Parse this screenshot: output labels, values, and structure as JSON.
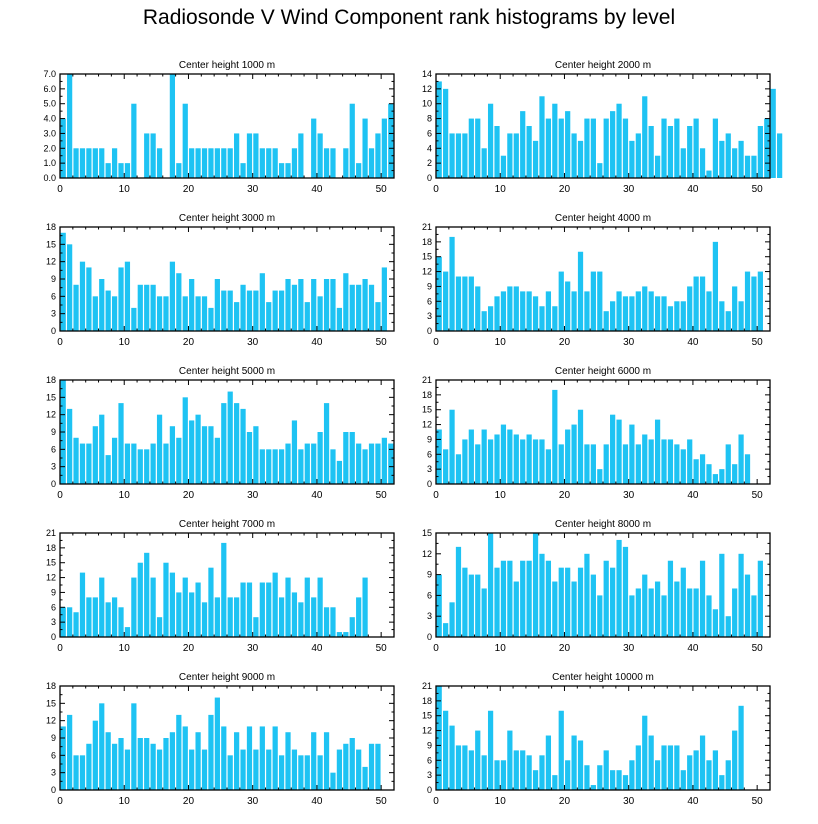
{
  "title": "Radiosonde V Wind Component rank histograms by level",
  "colors": {
    "bar": "#1ec3f3",
    "bar_edge": "#ffffff",
    "axis": "#000000",
    "background": "#ffffff"
  },
  "chart_data": [
    {
      "type": "bar",
      "title": "Center height 1000 m",
      "xlim": [
        0,
        52
      ],
      "xticks": [
        0,
        10,
        20,
        30,
        40,
        50
      ],
      "ylim": [
        0,
        7
      ],
      "yticks": [
        0,
        1,
        2,
        3,
        4,
        5,
        6,
        7
      ],
      "ytick_labels": [
        "0.0",
        "1.0",
        "2.0",
        "3.0",
        "4.0",
        "5.0",
        "6.0",
        "7.0"
      ],
      "values": [
        4,
        7,
        2,
        2,
        2,
        2,
        2,
        1,
        2,
        1,
        1,
        5,
        0,
        3,
        3,
        2,
        0,
        7,
        1,
        5,
        2,
        2,
        2,
        2,
        2,
        2,
        2,
        3,
        1,
        3,
        3,
        2,
        2,
        2,
        1,
        1,
        2,
        3,
        0,
        4,
        3,
        2,
        2,
        0,
        2,
        5,
        1,
        4,
        2,
        3,
        4,
        5
      ]
    },
    {
      "type": "bar",
      "title": "Center height 2000 m",
      "xlim": [
        0,
        52
      ],
      "xticks": [
        0,
        10,
        20,
        30,
        40,
        50
      ],
      "ylim": [
        0,
        14
      ],
      "yticks": [
        0,
        2,
        4,
        6,
        8,
        10,
        12,
        14
      ],
      "ytick_labels": [
        "0",
        "2",
        "4",
        "6",
        "8",
        "10",
        "12",
        "14"
      ],
      "values": [
        13,
        12,
        6,
        6,
        6,
        8,
        8,
        4,
        10,
        7,
        3,
        6,
        6,
        9,
        7,
        5,
        11,
        8,
        10,
        8,
        9,
        6,
        5,
        8,
        8,
        2,
        8,
        9,
        10,
        8,
        5,
        6,
        11,
        7,
        3,
        8,
        7,
        8,
        4,
        7,
        8,
        4,
        1,
        8,
        5,
        6,
        4,
        5,
        3,
        3,
        7,
        8,
        12,
        6
      ]
    },
    {
      "type": "bar",
      "title": "Center height 3000 m",
      "xlim": [
        0,
        52
      ],
      "xticks": [
        0,
        10,
        20,
        30,
        40,
        50
      ],
      "ylim": [
        0,
        18
      ],
      "yticks": [
        0,
        3,
        6,
        9,
        12,
        15,
        18
      ],
      "ytick_labels": [
        "0",
        "3",
        "6",
        "9",
        "12",
        "15",
        "18"
      ],
      "values": [
        17,
        15,
        8,
        12,
        11,
        6,
        9,
        7,
        6,
        11,
        12,
        4,
        8,
        8,
        8,
        6,
        6,
        12,
        10,
        6,
        9,
        6,
        6,
        4,
        9,
        7,
        7,
        5,
        8,
        7,
        7,
        10,
        5,
        7,
        7,
        9,
        8,
        9,
        5,
        9,
        6,
        9,
        9,
        4,
        10,
        8,
        8,
        9,
        8,
        5,
        11
      ]
    },
    {
      "type": "bar",
      "title": "Center height 4000 m",
      "xlim": [
        0,
        52
      ],
      "xticks": [
        0,
        10,
        20,
        30,
        40,
        50
      ],
      "ylim": [
        0,
        21
      ],
      "yticks": [
        0,
        3,
        6,
        9,
        12,
        15,
        18,
        21
      ],
      "ytick_labels": [
        "0",
        "3",
        "6",
        "9",
        "12",
        "15",
        "18",
        "21"
      ],
      "values": [
        15,
        12,
        19,
        11,
        11,
        11,
        9,
        4,
        5,
        7,
        8,
        9,
        9,
        8,
        8,
        7,
        5,
        8,
        5,
        12,
        10,
        8,
        16,
        8,
        12,
        12,
        4,
        6,
        8,
        7,
        7,
        8,
        9,
        8,
        7,
        7,
        5,
        6,
        6,
        9,
        11,
        11,
        8,
        18,
        6,
        4,
        9,
        6,
        12,
        11,
        12
      ]
    },
    {
      "type": "bar",
      "title": "Center height 5000 m",
      "xlim": [
        0,
        52
      ],
      "xticks": [
        0,
        10,
        20,
        30,
        40,
        50
      ],
      "ylim": [
        0,
        18
      ],
      "yticks": [
        0,
        3,
        6,
        9,
        12,
        15,
        18
      ],
      "ytick_labels": [
        "0",
        "3",
        "6",
        "9",
        "12",
        "15",
        "18"
      ],
      "values": [
        18,
        13,
        8,
        7,
        7,
        10,
        12,
        5,
        8,
        14,
        7,
        7,
        6,
        6,
        7,
        12,
        7,
        10,
        8,
        15,
        11,
        12,
        10,
        10,
        8,
        14,
        16,
        14,
        13,
        9,
        10,
        6,
        6,
        6,
        6,
        7,
        11,
        6,
        7,
        7,
        9,
        14,
        6,
        4,
        9,
        9,
        7,
        6,
        7,
        7,
        8,
        7
      ]
    },
    {
      "type": "bar",
      "title": "Center height 6000 m",
      "xlim": [
        0,
        52
      ],
      "xticks": [
        0,
        10,
        20,
        30,
        40,
        50
      ],
      "ylim": [
        0,
        21
      ],
      "yticks": [
        0,
        3,
        6,
        9,
        12,
        15,
        18,
        21
      ],
      "ytick_labels": [
        "0",
        "3",
        "6",
        "9",
        "12",
        "15",
        "18",
        "21"
      ],
      "values": [
        11,
        7,
        15,
        6,
        9,
        11,
        8,
        11,
        9,
        10,
        12,
        11,
        10,
        9,
        10,
        9,
        9,
        7,
        19,
        8,
        11,
        12,
        15,
        8,
        8,
        3,
        8,
        14,
        13,
        8,
        12,
        8,
        10,
        9,
        13,
        9,
        9,
        8,
        7,
        9,
        5,
        6,
        4,
        2,
        3,
        8,
        4,
        10,
        6
      ]
    },
    {
      "type": "bar",
      "title": "Center height 7000 m",
      "xlim": [
        0,
        52
      ],
      "xticks": [
        0,
        10,
        20,
        30,
        40,
        50
      ],
      "ylim": [
        0,
        21
      ],
      "yticks": [
        0,
        3,
        6,
        9,
        12,
        15,
        18,
        21
      ],
      "ytick_labels": [
        "0",
        "3",
        "6",
        "9",
        "12",
        "15",
        "18",
        "21"
      ],
      "values": [
        6,
        6,
        5,
        13,
        8,
        8,
        12,
        7,
        8,
        6,
        2,
        12,
        15,
        17,
        12,
        4,
        15,
        13,
        9,
        12,
        9,
        11,
        7,
        14,
        8,
        19,
        8,
        8,
        11,
        11,
        4,
        11,
        11,
        13,
        8,
        12,
        9,
        7,
        12,
        8,
        12,
        6,
        6,
        1,
        1,
        4,
        8,
        12
      ]
    },
    {
      "type": "bar",
      "title": "Center height 8000 m",
      "xlim": [
        0,
        52
      ],
      "xticks": [
        0,
        10,
        20,
        30,
        40,
        50
      ],
      "ylim": [
        0,
        15
      ],
      "yticks": [
        0,
        3,
        6,
        9,
        12,
        15
      ],
      "ytick_labels": [
        "0",
        "3",
        "6",
        "9",
        "12",
        "15"
      ],
      "values": [
        9,
        2,
        5,
        13,
        10,
        9,
        9,
        7,
        15,
        10,
        11,
        11,
        8,
        11,
        11,
        15,
        12,
        11,
        8,
        10,
        10,
        8,
        10,
        12,
        9,
        6,
        11,
        10,
        14,
        13,
        6,
        7,
        9,
        7,
        8,
        6,
        11,
        8,
        10,
        7,
        7,
        11,
        6,
        4,
        12,
        3,
        7,
        12,
        9,
        6,
        11
      ]
    },
    {
      "type": "bar",
      "title": "Center height 9000 m",
      "xlim": [
        0,
        52
      ],
      "xticks": [
        0,
        10,
        20,
        30,
        40,
        50
      ],
      "ylim": [
        0,
        18
      ],
      "yticks": [
        0,
        3,
        6,
        9,
        12,
        15,
        18
      ],
      "ytick_labels": [
        "0",
        "3",
        "6",
        "9",
        "12",
        "15",
        "18"
      ],
      "values": [
        11,
        13,
        6,
        6,
        8,
        12,
        15,
        10,
        8,
        9,
        7,
        15,
        9,
        9,
        8,
        7,
        9,
        10,
        13,
        11,
        7,
        10,
        7,
        13,
        16,
        11,
        6,
        10,
        7,
        11,
        7,
        11,
        7,
        11,
        6,
        10,
        7,
        6,
        6,
        10,
        6,
        10,
        3,
        7,
        8,
        9,
        7,
        4,
        8,
        8
      ]
    },
    {
      "type": "bar",
      "title": "Center height 10000 m",
      "xlim": [
        0,
        52
      ],
      "xticks": [
        0,
        10,
        20,
        30,
        40,
        50
      ],
      "ylim": [
        0,
        21
      ],
      "yticks": [
        0,
        3,
        6,
        9,
        12,
        15,
        18,
        21
      ],
      "ytick_labels": [
        "0",
        "3",
        "6",
        "9",
        "12",
        "15",
        "18",
        "21"
      ],
      "values": [
        21,
        16,
        13,
        9,
        9,
        8,
        12,
        7,
        16,
        6,
        6,
        12,
        8,
        8,
        7,
        4,
        7,
        11,
        3,
        16,
        6,
        11,
        10,
        5,
        1,
        5,
        8,
        4,
        4,
        3,
        6,
        9,
        15,
        11,
        6,
        9,
        9,
        9,
        4,
        7,
        8,
        11,
        6,
        8,
        3,
        6,
        12,
        17
      ]
    }
  ]
}
